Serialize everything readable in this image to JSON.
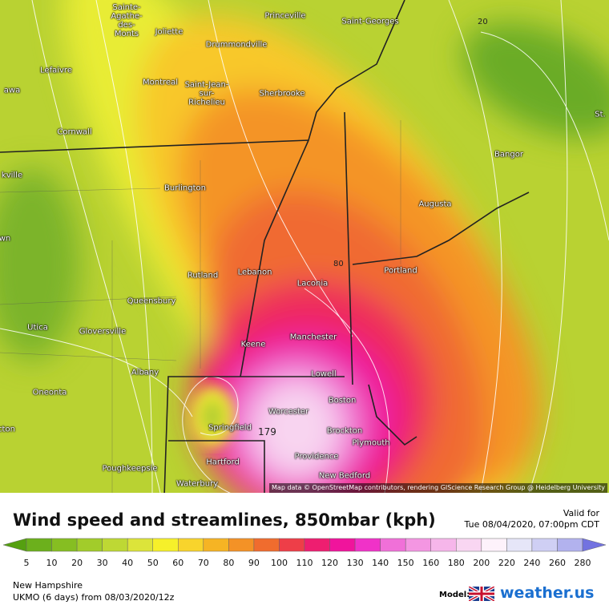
{
  "map": {
    "cities": [
      "Princeville",
      "Saint-Georges",
      "Sainte-Agathe-des-Monts",
      "Joliette",
      "Drummondville",
      "Lefaivre",
      "Montreal",
      "Saint-Jean-sur-Richelieu",
      "Sherbrooke",
      "Cornwall",
      "Bangor",
      "Burlington",
      "Augusta",
      "Portland",
      "Rutland",
      "Lebanon",
      "Laconia",
      "Queensbury",
      "Utica",
      "Gloversville",
      "Manchester",
      "Keene",
      "Albany",
      "Lowell",
      "Oneonta",
      "Boston",
      "Worcester",
      "Springfield",
      "Brockton",
      "Plymouth",
      "Providence",
      "Poughkeepsie",
      "Hartford",
      "New Bedford",
      "Waterbury",
      "awa",
      "kville",
      "wn",
      "cton",
      "St."
    ],
    "contour_labels": [
      "20",
      "80",
      "179"
    ],
    "attribution": "Map data © OpenStreetMap contributors, rendering GIScience Research Group @ Heidelberg University"
  },
  "header": {
    "title": "Wind speed and streamlines, 850mbar (kph)",
    "valid_label": "Valid for",
    "valid_time": "Tue 08/04/2020, 07:00pm CDT"
  },
  "colorbar": {
    "ticks": [
      5,
      10,
      20,
      30,
      40,
      50,
      60,
      70,
      80,
      90,
      100,
      110,
      120,
      130,
      140,
      150,
      160,
      180,
      200,
      220,
      240,
      260,
      280
    ],
    "colors": [
      "#55a010",
      "#6cb01c",
      "#86be22",
      "#a2cc2a",
      "#bed834",
      "#dce43a",
      "#f6f02a",
      "#f8d42c",
      "#f6b424",
      "#f49226",
      "#f06c2e",
      "#ee3e48",
      "#ee1e70",
      "#f0149c",
      "#f032c8",
      "#f070d8",
      "#f496e2",
      "#f6b6ea",
      "#f9d6f2",
      "#fdf2fb",
      "#e6e6f8",
      "#cfcff4",
      "#b2b2ee",
      "#9292e8",
      "#7272e0"
    ]
  },
  "footer": {
    "region": "New Hampshire",
    "model": "UKMO (6 days) from  08/03/2020/12z",
    "model_label": "Model:",
    "brand": "weather.us"
  }
}
